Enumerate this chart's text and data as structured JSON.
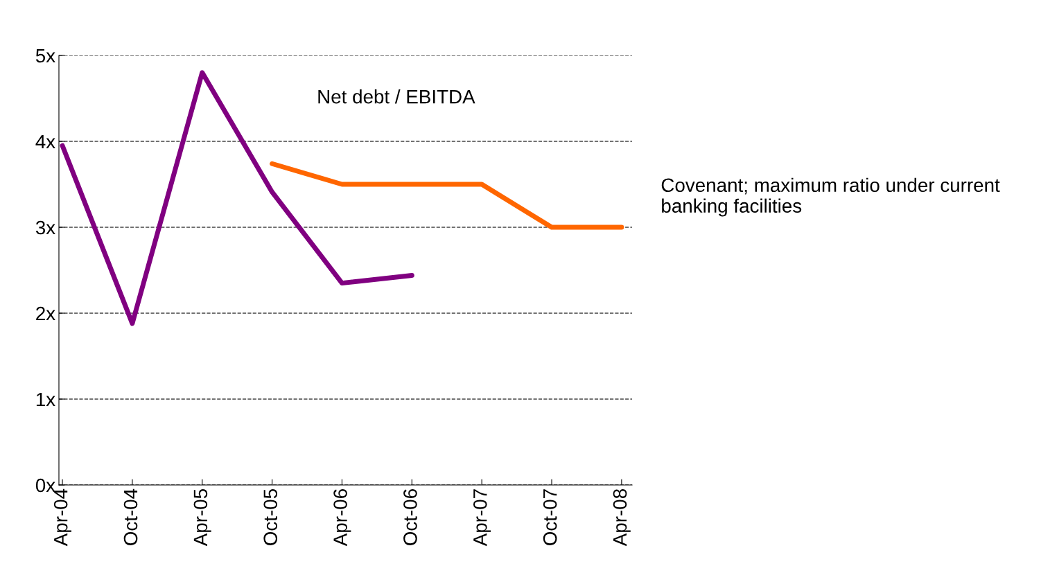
{
  "chart_data": {
    "type": "line",
    "categories": [
      "Apr-04",
      "Oct-04",
      "Apr-05",
      "Oct-05",
      "Apr-06",
      "Oct-06",
      "Apr-07",
      "Oct-07",
      "Apr-08"
    ],
    "series": [
      {
        "color": "#800080",
        "values": [
          3.95,
          1.88,
          4.8,
          3.41,
          2.35,
          2.44,
          null,
          null,
          null
        ]
      },
      {
        "name": "Covenant; maximum ratio under current banking facilities",
        "color": "#ff6600",
        "values": [
          null,
          null,
          null,
          3.74,
          3.5,
          3.5,
          3.5,
          3.0,
          3.0
        ]
      }
    ],
    "ylim": [
      0,
      5
    ],
    "yticks": [
      {
        "value": 0,
        "label": "0x"
      },
      {
        "value": 1,
        "label": "1x"
      },
      {
        "value": 2,
        "label": "2x"
      },
      {
        "value": 3,
        "label": "3x"
      },
      {
        "value": 4,
        "label": "4x"
      },
      {
        "value": 5,
        "label": "5x"
      }
    ],
    "title": "Net debt / EBITDA",
    "grid": "y",
    "legend": false,
    "marker": "none",
    "line_style": "solid"
  }
}
